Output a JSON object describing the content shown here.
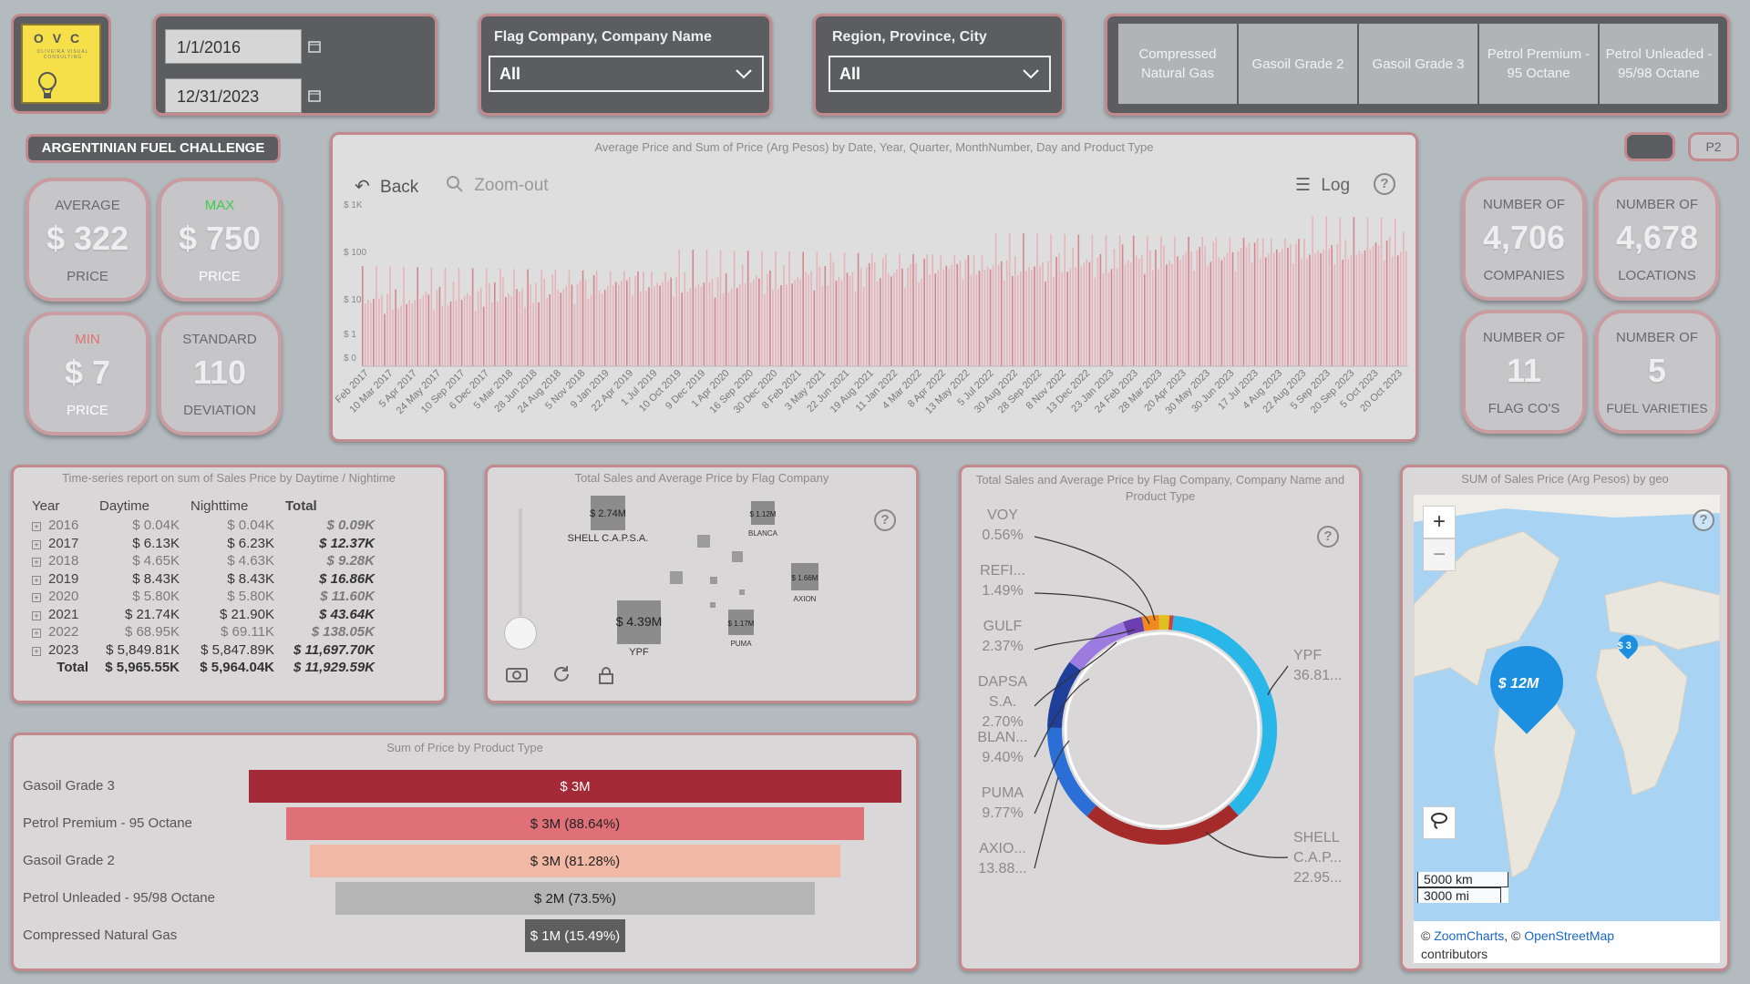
{
  "logo": {
    "letters": "OVC",
    "subtitle": "OLIVEIRA VISUAL CONSULTING"
  },
  "dates": {
    "start": "1/1/2016",
    "end": "12/31/2023"
  },
  "slicers": {
    "company": {
      "title": "Flag Company, Company Name",
      "value": "All"
    },
    "region": {
      "title": "Region, Province, City",
      "value": "All"
    }
  },
  "product_tiles": [
    "Compressed Natural Gas",
    "Gasoil Grade 2",
    "Gasoil Grade 3",
    "Petrol Premium - 95 Octane",
    "Petrol Unleaded - 95/98 Octane"
  ],
  "page_button": "P2",
  "banner": "ARGENTINIAN FUEL CHALLENGE",
  "kpis": {
    "avg": {
      "top": "AVERAGE",
      "value": "$ 322",
      "bottom": "PRICE"
    },
    "max": {
      "top": "MAX",
      "value": "$ 750",
      "bottom": "PRICE"
    },
    "min": {
      "top": "MIN",
      "value": "$ 7",
      "bottom": "PRICE"
    },
    "std": {
      "top": "STANDARD",
      "value": "110",
      "bottom": "DEVIATION"
    },
    "companies": {
      "top": "NUMBER OF",
      "value": "4,706",
      "bottom": "COMPANIES"
    },
    "locations": {
      "top": "NUMBER OF",
      "value": "4,678",
      "bottom": "LOCATIONS"
    },
    "flags": {
      "top": "NUMBER OF",
      "value": "11",
      "bottom": "FLAG CO'S"
    },
    "fuels": {
      "top": "NUMBER OF",
      "value": "5",
      "bottom": "FUEL VARIETIES"
    }
  },
  "colors": {
    "accent": "#c28a8f",
    "bar": "#d99ca2",
    "max_green": "#3ecf4a",
    "min_red": "#e07070"
  },
  "timeline": {
    "title": "Average Price and Sum of Price (Arg Pesos) by Date, Year, Quarter, MonthNumber, Day and Product Type",
    "back": "Back",
    "zoom_out": "Zoom-out",
    "log": "Log",
    "help": "?",
    "y_ticks": [
      "$ 1K",
      "$ 100",
      "$ 10",
      "$ 1",
      "$ 0"
    ],
    "x_ticks": [
      "Feb 2017",
      "10 Mar 2017",
      "5 Apr 2017",
      "24 May 2017",
      "10 Sep 2017",
      "6 Dec 2017",
      "5 Mar 2018",
      "28 Jun 2018",
      "24 Aug 2018",
      "5 Nov 2018",
      "9 Jan 2019",
      "22 Apr 2019",
      "1 Jul 2019",
      "10 Oct 2019",
      "9 Dec 2019",
      "1 Apr 2020",
      "16 Sep 2020",
      "30 Dec 2020",
      "8 Feb 2021",
      "3 May 2021",
      "22 Jun 2021",
      "19 Aug 2021",
      "11 Jan 2022",
      "4 Mar 2022",
      "8 Apr 2022",
      "13 May 2022",
      "5 Jul 2022",
      "30 Aug 2022",
      "28 Sep 2022",
      "8 Nov 2022",
      "13 Dec 2022",
      "23 Jan 2023",
      "24 Feb 2023",
      "28 Mar 2023",
      "20 Apr 2023",
      "30 May 2023",
      "30 Jun 2023",
      "17 Jul 2023",
      "4 Aug 2023",
      "22 Aug 2023",
      "5 Sep 2023",
      "20 Sep 2023",
      "5 Oct 2023",
      "20 Oct 2023"
    ]
  },
  "timeseries": {
    "title": "Time-series report on sum of Sales Price by Daytime / Nightime",
    "headers": [
      "Year",
      "Daytime",
      "Nighttime",
      "Total"
    ],
    "rows": [
      {
        "year": "2016",
        "day": "$ 0.04K",
        "night": "$ 0.04K",
        "total": "$ 0.09K",
        "dim": true
      },
      {
        "year": "2017",
        "day": "$ 6.13K",
        "night": "$ 6.23K",
        "total": "$ 12.37K",
        "dim": false
      },
      {
        "year": "2018",
        "day": "$ 4.65K",
        "night": "$ 4.63K",
        "total": "$ 9.28K",
        "dim": true
      },
      {
        "year": "2019",
        "day": "$ 8.43K",
        "night": "$ 8.43K",
        "total": "$ 16.86K",
        "dim": false
      },
      {
        "year": "2020",
        "day": "$ 5.80K",
        "night": "$ 5.80K",
        "total": "$ 11.60K",
        "dim": true
      },
      {
        "year": "2021",
        "day": "$ 21.74K",
        "night": "$ 21.90K",
        "total": "$ 43.64K",
        "dim": false
      },
      {
        "year": "2022",
        "day": "$ 68.95K",
        "night": "$ 69.11K",
        "total": "$ 138.05K",
        "dim": true
      },
      {
        "year": "2023",
        "day": "$ 5,849.81K",
        "night": "$ 5,847.89K",
        "total": "$ 11,697.70K",
        "dim": false
      }
    ],
    "total": {
      "label": "Total",
      "day": "$ 5,965.55K",
      "night": "$ 5,964.04K",
      "total": "$ 11,929.59K"
    }
  },
  "bubbles": {
    "title": "Total Sales and Average Price by Flag Company",
    "help": "?",
    "items": [
      {
        "value": "$ 2.74M",
        "label": "SHELL C.A.P.S.A."
      },
      {
        "value": "$ 1.12M",
        "label": "BLANCA"
      },
      {
        "value": "$ 1.66M",
        "label": "AXION"
      },
      {
        "value": "$ 4.39M",
        "label": "YPF"
      },
      {
        "value": "$ 1.17M",
        "label": "PUMA"
      }
    ]
  },
  "donut": {
    "title": "Total Sales and Average Price by Flag Company, Company Name and Product Type",
    "help": "?",
    "left_labels": [
      {
        "name": "VOY",
        "pct": "0.56%"
      },
      {
        "name": "REFI...",
        "pct": "1.49%"
      },
      {
        "name": "GULF",
        "pct": "2.37%"
      },
      {
        "name": "DAPSA S.A.",
        "pct": "2.70%"
      },
      {
        "name": "BLAN...",
        "pct": "9.40%"
      },
      {
        "name": "PUMA",
        "pct": "9.77%"
      },
      {
        "name": "AXIO...",
        "pct": "13.88..."
      }
    ],
    "right_labels": [
      {
        "name": "YPF",
        "pct": "36.81..."
      },
      {
        "name": "SHELL C.A.P...",
        "pct": "22.95..."
      }
    ]
  },
  "funnel": {
    "title": "Sum of Price by Product Type",
    "rows": [
      {
        "label": "Gasoil Grade 3",
        "value": "$ 3M",
        "fraction": 1.0,
        "color": "#a52a38",
        "text": "#ffffff"
      },
      {
        "label": "Petrol Premium - 95 Octane",
        "value": "$ 3M (88.64%)",
        "fraction": 0.8864,
        "color": "#e07077",
        "text": "#222222"
      },
      {
        "label": "Gasoil Grade 2",
        "value": "$ 3M (81.28%)",
        "fraction": 0.8128,
        "color": "#f2b8a6",
        "text": "#222222"
      },
      {
        "label": "Petrol Unleaded - 95/98 Octane",
        "value": "$ 2M (73.5%)",
        "fraction": 0.735,
        "color": "#b5b5b5",
        "text": "#222222"
      },
      {
        "label": "Compressed Natural Gas",
        "value": "$ 1M (15.49%)",
        "fraction": 0.1549,
        "color": "#5e5e5e",
        "text": "#ffffff"
      }
    ]
  },
  "map": {
    "title": "SUM of Sales Price (Arg Pesos) by geo",
    "pin_main": "$ 12M",
    "pin_small": "$ 3",
    "zoom_in": "+",
    "zoom_out": "−",
    "help": "?",
    "scale_km": "5000 km",
    "scale_mi": "3000 mi",
    "credit_1": "©",
    "credit_zc": "ZoomCharts",
    "credit_2": ", ©",
    "credit_osm": "OpenStreetMap",
    "credit_3": "contributors"
  }
}
